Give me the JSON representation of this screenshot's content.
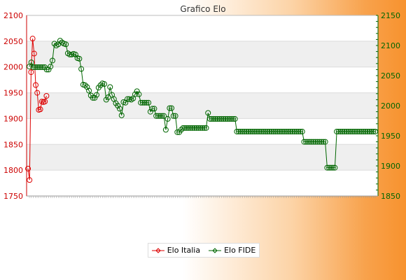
{
  "chart_data": {
    "type": "line",
    "title": "Grafico Elo",
    "y_left": {
      "min": 1750,
      "max": 2100,
      "step": 50,
      "color": "#cc0000"
    },
    "y_right": {
      "min": 1850,
      "max": 2150,
      "step": 50,
      "color": "#006600"
    },
    "grid": true,
    "legend_position": "bottom",
    "series": [
      {
        "name": "Elo Italia",
        "axis": "left",
        "color": "#dd0000",
        "values": [
          1803,
          1781,
          1990,
          2055,
          2026,
          1965,
          1950,
          1917,
          1918,
          1933,
          1932,
          1933,
          1944
        ]
      },
      {
        "name": "Elo FIDE",
        "axis": "right",
        "color": "#006600",
        "values": [
          2065,
          2072,
          2064,
          2064,
          2064,
          2064,
          2064,
          2064,
          2064,
          2060,
          2060,
          2065,
          2075,
          2103,
          2100,
          2102,
          2108,
          2105,
          2103,
          2102,
          2087,
          2085,
          2085,
          2086,
          2085,
          2079,
          2078,
          2061,
          2035,
          2034,
          2031,
          2025,
          2017,
          2013,
          2013,
          2018,
          2030,
          2034,
          2037,
          2036,
          2010,
          2014,
          2031,
          2018,
          2011,
          2004,
          2000,
          1995,
          1984,
          2006,
          2005,
          2011,
          2011,
          2010,
          2012,
          2019,
          2024,
          2019,
          2005,
          2005,
          2005,
          2005,
          2005,
          1990,
          1995,
          1995,
          1983,
          1983,
          1983,
          1983,
          1983,
          1960,
          1978,
          1996,
          1996,
          1983,
          1983,
          1956,
          1956,
          1960,
          1963,
          1963,
          1963,
          1963,
          1963,
          1963,
          1963,
          1963,
          1963,
          1963,
          1963,
          1963,
          1963,
          1988,
          1978,
          1978,
          1978,
          1978,
          1978,
          1978,
          1978,
          1978,
          1978,
          1978,
          1978,
          1978,
          1978,
          1978,
          1957,
          1957,
          1957,
          1957,
          1957,
          1957,
          1957,
          1957,
          1957,
          1957,
          1957,
          1957,
          1957,
          1957,
          1957,
          1957,
          1957,
          1957,
          1957,
          1957,
          1957,
          1957,
          1957,
          1957,
          1957,
          1957,
          1957,
          1957,
          1957,
          1957,
          1957,
          1957,
          1957,
          1957,
          1957,
          1940,
          1940,
          1940,
          1940,
          1940,
          1940,
          1940,
          1940,
          1940,
          1940,
          1940,
          1940,
          1897,
          1897,
          1897,
          1897,
          1897,
          1957,
          1957,
          1957,
          1957,
          1957,
          1957,
          1957,
          1957,
          1957,
          1957,
          1957,
          1957,
          1957,
          1957,
          1957,
          1957,
          1957,
          1957,
          1957,
          1957,
          1957
        ]
      }
    ]
  }
}
